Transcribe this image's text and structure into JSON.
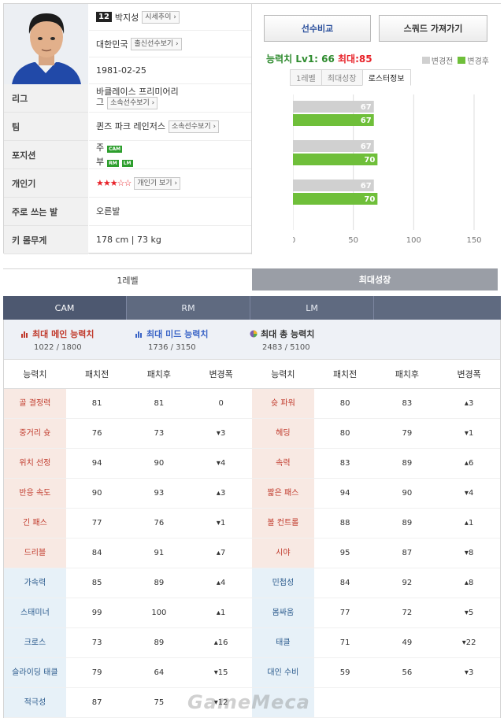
{
  "player": {
    "number": "12",
    "name": "박지성",
    "market_btn": "시세추이",
    "nation": "대한민국",
    "nation_btn": "출신선수보기",
    "birthdate": "1981-02-25"
  },
  "labels": {
    "league": "리그",
    "team": "팀",
    "position": "포지션",
    "popularity": "개인기",
    "foot": "주로 쓰는 발",
    "body": "키 몸무게"
  },
  "values": {
    "league_line1": "바클레이스 프리미어리",
    "league_line2": "그",
    "league_btn": "소속선수보기",
    "team": "퀸즈 파크 레인저스",
    "team_btn": "소속선수보기",
    "pos_main_label": "주",
    "pos_main": "CAM",
    "pos_sub_label": "부",
    "pos_sub1": "RM",
    "pos_sub2": "LM",
    "stars": "★★★☆☆",
    "popularity_btn": "개인기 보기",
    "foot": "오른발",
    "body": "178 cm | 73 kg"
  },
  "right": {
    "compare_btn": "선수비교",
    "squad_btn": "스쿼드 가져가기",
    "ability_label": "능력치",
    "lv_text": "Lv1: 66",
    "max_text": "최대:85",
    "legend_before": "변경전",
    "legend_after": "변경후",
    "color_before": "#d0d0d0",
    "color_after": "#6fbf3a",
    "tabs": [
      "1레벨",
      "최대성장",
      "로스터정보"
    ]
  },
  "chart_data": {
    "type": "bar",
    "orientation": "horizontal",
    "categories": [
      "CAM",
      "RM",
      "LM"
    ],
    "series": [
      {
        "name": "변경전",
        "values": [
          67,
          67,
          67
        ]
      },
      {
        "name": "변경후",
        "values": [
          67,
          70,
          70
        ]
      }
    ],
    "xticks": [
      0,
      50,
      100,
      150
    ],
    "xlim": [
      0,
      150
    ]
  },
  "level_tabs": [
    "1레벨",
    "최대성장"
  ],
  "pos_tabs": [
    "CAM",
    "RM",
    "LM",
    ""
  ],
  "max_stats": [
    {
      "title": "최대 메인 능력치",
      "value": "1022 / 1800",
      "icon": "bar-chart-icon",
      "color": "#c0392b"
    },
    {
      "title": "최대 미드 능력치",
      "value": "1736 / 3150",
      "icon": "bar-chart-icon",
      "color": "#3a64c6"
    },
    {
      "title": "최대 총 능력치",
      "value": "2483 / 5100",
      "icon": "pie-chart-icon",
      "color": "#7a5fb0"
    }
  ],
  "table_headers": [
    "능력치",
    "패치전",
    "패치후",
    "변경폭",
    "능력치",
    "패치전",
    "패치후",
    "변경폭"
  ],
  "rows": [
    {
      "l": [
        "골 결정력",
        "81",
        "81",
        "0"
      ],
      "ld": "zero",
      "r": [
        "슛 파워",
        "80",
        "83",
        "+3"
      ],
      "rd": "up",
      "g": "a"
    },
    {
      "l": [
        "중거리 슛",
        "76",
        "73",
        "3"
      ],
      "ld": "dn",
      "r": [
        "헤딩",
        "80",
        "79",
        "1"
      ],
      "rd": "dn",
      "g": "a"
    },
    {
      "l": [
        "위치 선정",
        "94",
        "90",
        "4"
      ],
      "ld": "dn",
      "r": [
        "속력",
        "83",
        "89",
        "+6"
      ],
      "rd": "up",
      "g": "a"
    },
    {
      "l": [
        "반응 속도",
        "90",
        "93",
        "+3"
      ],
      "ld": "up",
      "r": [
        "짧은 패스",
        "94",
        "90",
        "4"
      ],
      "rd": "dn",
      "g": "a"
    },
    {
      "l": [
        "긴 패스",
        "77",
        "76",
        "1"
      ],
      "ld": "dn",
      "r": [
        "볼 컨트롤",
        "88",
        "89",
        "+1"
      ],
      "rd": "up",
      "g": "a"
    },
    {
      "l": [
        "드리블",
        "84",
        "91",
        "+7"
      ],
      "ld": "up",
      "r": [
        "시야",
        "95",
        "87",
        "8"
      ],
      "rd": "dn",
      "g": "a"
    },
    {
      "l": [
        "가속력",
        "85",
        "89",
        "+4"
      ],
      "ld": "up",
      "r": [
        "민첩성",
        "84",
        "92",
        "+8"
      ],
      "rd": "up",
      "g": "b"
    },
    {
      "l": [
        "스태미너",
        "99",
        "100",
        "+1"
      ],
      "ld": "up",
      "r": [
        "몸싸움",
        "77",
        "72",
        "5"
      ],
      "rd": "dn",
      "g": "b"
    },
    {
      "l": [
        "크로스",
        "73",
        "89",
        "+16"
      ],
      "ld": "up",
      "r": [
        "태클",
        "71",
        "49",
        "22"
      ],
      "rd": "dn",
      "g": "b"
    },
    {
      "l": [
        "슬라이딩 태클",
        "79",
        "64",
        "15"
      ],
      "ld": "dn",
      "r": [
        "대인 수비",
        "59",
        "56",
        "3"
      ],
      "rd": "dn",
      "g": "b"
    },
    {
      "l": [
        "적극성",
        "87",
        "75",
        "12"
      ],
      "ld": "dn",
      "r": [
        "",
        "",
        "",
        ""
      ],
      "rd": "dn",
      "g": "b"
    }
  ],
  "watermark": "GameMeca"
}
